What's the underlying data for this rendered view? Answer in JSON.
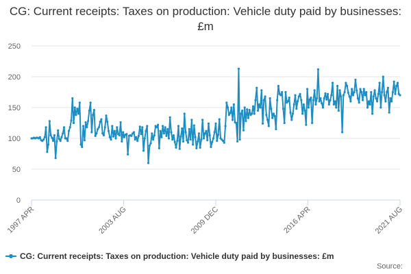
{
  "chart_data": {
    "type": "line",
    "title": "CG: Current receipts: Taxes on production: Vehicle duty paid by businesses: £m",
    "xlabel": "",
    "ylabel": "",
    "ylim": [
      0,
      250
    ],
    "yticks": [
      0,
      50,
      100,
      150,
      200,
      250
    ],
    "x_tick_labels": [
      "1997 APR",
      "2003 AUG",
      "2009 DEC",
      "2016 APR",
      "2021 AUG"
    ],
    "x_start": "1997 APR",
    "x_end": "2021 AUG",
    "grid": true,
    "legend_position": "bottom",
    "series": [
      {
        "name": "CG: Current receipts: Taxes on production: Vehicle duty paid by businesses: £m",
        "color": "#1f8dc2",
        "values": [
          100,
          100,
          101,
          100,
          101,
          101,
          100,
          102,
          97,
          96,
          98,
          102,
          118,
          78,
          90,
          128,
          105,
          101,
          96,
          105,
          68,
          95,
          113,
          99,
          96,
          102,
          108,
          118,
          100,
          100,
          96,
          112,
          118,
          129,
          165,
          125,
          150,
          138,
          148,
          140,
          158,
          90,
          86,
          120,
          97,
          126,
          118,
          128,
          145,
          158,
          110,
          138,
          146,
          104,
          108,
          115,
          118,
          127,
          131,
          108,
          105,
          118,
          137,
          127,
          112,
          102,
          98,
          120,
          103,
          112,
          100,
          118,
          107,
          105,
          126,
          95,
          110,
          102,
          106,
          107,
          74,
          104,
          105,
          104,
          108,
          110,
          98,
          102,
          96,
          104,
          119,
          107,
          118,
          80,
          100,
          112,
          120,
          60,
          88,
          92,
          108,
          98,
          105,
          120,
          118,
          122,
          84,
          112,
          102,
          120,
          108,
          118,
          104,
          115,
          100,
          134,
          110,
          98,
          105,
          94,
          85,
          96,
          120,
          83,
          103,
          116,
          95,
          140,
          110,
          97,
          93,
          115,
          98,
          130,
          90,
          121,
          102,
          84,
          95,
          108,
          85,
          98,
          130,
          100,
          108,
          112,
          97,
          124,
          105,
          86,
          94,
          100,
          110,
          124,
          96,
          106,
          131,
          100,
          98,
          96,
          93,
          120,
          158,
          150,
          138,
          141,
          150,
          130,
          155,
          126,
          125,
          95,
          213,
          98,
          140,
          145,
          113,
          150,
          128,
          147,
          133,
          146,
          138,
          140,
          152,
          140,
          162,
          182,
          145,
          155,
          150,
          178,
          124,
          162,
          168,
          138,
          130,
          120,
          165,
          148,
          133,
          140,
          136,
          115,
          162,
          185,
          172,
          170,
          175,
          148,
          125,
          175,
          158,
          160,
          166,
          142,
          130,
          140,
          155,
          170,
          148,
          160,
          168,
          172,
          162,
          140,
          155,
          145,
          122,
          180,
          150,
          163,
          166,
          125,
          162,
          178,
          155,
          165,
          212,
          160,
          165,
          157,
          150,
          165,
          173,
          163,
          172,
          155,
          162,
          170,
          190,
          155,
          160,
          150,
          185,
          145,
          178,
          168,
          110,
          170,
          175,
          190,
          185,
          174,
          168,
          160,
          180,
          170,
          175,
          195,
          178,
          165,
          158,
          180,
          175,
          162,
          180,
          170,
          175,
          150,
          160,
          155,
          175,
          140,
          168,
          178,
          165,
          160,
          172,
          190,
          150,
          175,
          200,
          170,
          160,
          175,
          182,
          142,
          165,
          160,
          175,
          192,
          172,
          185,
          190,
          172,
          170
        ]
      }
    ]
  },
  "legend": {
    "label": "CG: Current receipts: Taxes on production: Vehicle duty paid by businesses: £m"
  },
  "credits": {
    "label": "Source:"
  }
}
